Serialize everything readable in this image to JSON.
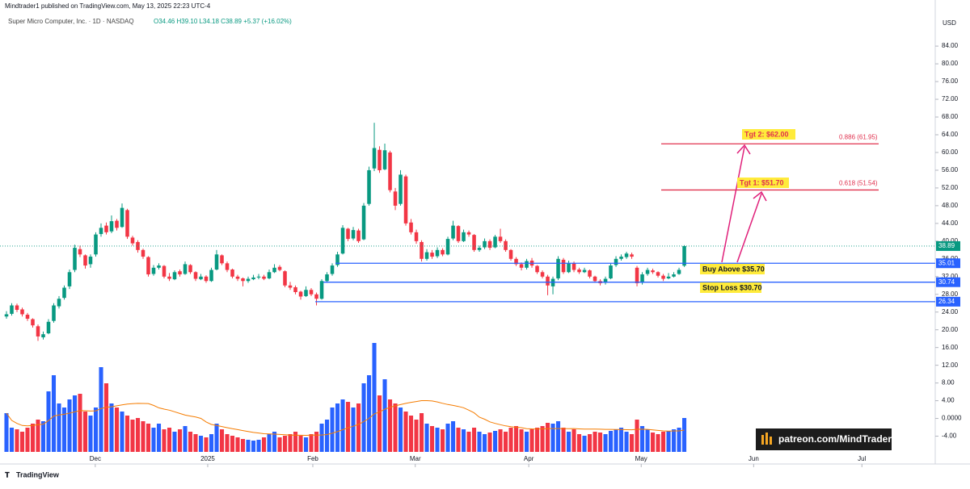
{
  "header": {
    "publisher": "Mindtrader1 published on TradingView.com, May 13, 2025 22:23 UTC-4",
    "symbol": "Super Micro Computer, Inc. · 1D · NASDAQ",
    "ohlc_text": "O34.46 H39.10 L34.18 C38.89 +5.37 (+16.02%)"
  },
  "chart_data": {
    "type": "candlestick",
    "currency": "USD",
    "up_color": "#089981",
    "down_color": "#f23645",
    "volume_up_color": "#2962ff",
    "volume_down_color": "#f23645",
    "volume_ma_color": "#f57c00",
    "ohlc": [
      [
        23,
        24.2,
        22.5,
        23.5
      ],
      [
        23.6,
        26,
        23.2,
        25.5
      ],
      [
        25.5,
        25.9,
        24,
        24.5
      ],
      [
        24.6,
        25,
        23,
        23.5
      ],
      [
        23.4,
        23.8,
        22,
        22.5
      ],
      [
        22.4,
        22.6,
        20.5,
        21
      ],
      [
        20.8,
        21.2,
        17.5,
        18.5
      ],
      [
        18.3,
        19.6,
        17.8,
        19
      ],
      [
        19.2,
        22.4,
        19,
        21.8
      ],
      [
        22,
        26,
        21.6,
        25.5
      ],
      [
        25.3,
        27.6,
        24.8,
        27
      ],
      [
        27.2,
        30,
        26.8,
        29.5
      ],
      [
        29.8,
        33.6,
        29.2,
        33
      ],
      [
        33.5,
        39.2,
        33,
        38.5
      ],
      [
        38.2,
        39,
        36.4,
        37
      ],
      [
        36.8,
        37,
        33.8,
        34.5
      ],
      [
        34.8,
        37,
        34,
        36.5
      ],
      [
        37,
        42,
        36.5,
        41.5
      ],
      [
        41.6,
        44,
        41,
        43
      ],
      [
        43.5,
        44.2,
        41.5,
        42
      ],
      [
        42.2,
        45.8,
        41.8,
        44.5
      ],
      [
        44.6,
        45,
        42.4,
        43
      ],
      [
        43.2,
        48.5,
        43,
        47.5
      ],
      [
        47,
        47.3,
        40.5,
        41
      ],
      [
        40.8,
        41.2,
        39,
        39.5
      ],
      [
        39.8,
        40.2,
        37.4,
        38
      ],
      [
        38,
        38.3,
        36,
        36.5
      ],
      [
        36.4,
        36.6,
        32,
        32.5
      ],
      [
        32.6,
        34.6,
        32.2,
        34
      ],
      [
        34,
        35,
        33.6,
        34.5
      ],
      [
        34.4,
        34.6,
        31.6,
        32
      ],
      [
        32,
        32.8,
        31,
        31.5
      ],
      [
        31.4,
        33.4,
        31.2,
        33
      ],
      [
        33.2,
        33.6,
        32,
        32.5
      ],
      [
        32.6,
        35.4,
        32.4,
        34.8
      ],
      [
        34.6,
        34.8,
        32.6,
        33
      ],
      [
        33,
        33.2,
        31,
        31.5
      ],
      [
        31.4,
        32.6,
        31.2,
        32
      ],
      [
        32,
        32.3,
        30.6,
        31
      ],
      [
        31,
        34,
        30.8,
        33.5
      ],
      [
        33.6,
        38,
        33.4,
        37
      ],
      [
        36.8,
        37,
        34.6,
        35
      ],
      [
        35,
        35.4,
        33,
        33.5
      ],
      [
        33.6,
        33.8,
        31.6,
        32
      ],
      [
        32,
        32.4,
        31,
        31.5
      ],
      [
        31.6,
        31.8,
        29.8,
        31
      ],
      [
        31,
        32,
        30.6,
        31.5
      ],
      [
        31.4,
        32.4,
        31.2,
        31.8
      ],
      [
        31.8,
        32.6,
        31.4,
        32
      ],
      [
        32,
        32.4,
        31.2,
        31.5
      ],
      [
        31.6,
        33.6,
        31.4,
        33
      ],
      [
        33,
        34.8,
        32.8,
        34
      ],
      [
        34.2,
        34.6,
        33.2,
        33.5
      ],
      [
        33.2,
        33.4,
        29.6,
        30
      ],
      [
        30,
        30.8,
        29,
        29.5
      ],
      [
        29.6,
        30,
        28,
        28.5
      ],
      [
        28.6,
        28.8,
        26.8,
        27.5
      ],
      [
        27.6,
        29.8,
        27.4,
        29
      ],
      [
        29,
        29.4,
        27.6,
        28
      ],
      [
        28,
        28.4,
        25.5,
        27
      ],
      [
        27,
        31.4,
        26.8,
        31
      ],
      [
        31,
        33,
        30.6,
        32.5
      ],
      [
        32.6,
        35,
        32.2,
        34.5
      ],
      [
        34.6,
        37.6,
        34.2,
        37
      ],
      [
        37.2,
        43.6,
        37,
        43
      ],
      [
        42.8,
        43,
        40,
        40.5
      ],
      [
        40.6,
        43.2,
        40.2,
        42.5
      ],
      [
        42.4,
        42.8,
        39.6,
        40
      ],
      [
        40.4,
        48.6,
        40.2,
        48
      ],
      [
        48.4,
        56.8,
        48,
        56
      ],
      [
        56.4,
        66.7,
        55.8,
        61
      ],
      [
        60.6,
        61.4,
        55.4,
        56
      ],
      [
        56.2,
        62,
        56,
        60.5
      ],
      [
        60,
        60.4,
        51,
        51.5
      ],
      [
        51.2,
        52,
        47,
        48
      ],
      [
        48.4,
        56,
        48,
        55
      ],
      [
        54.6,
        55,
        43.5,
        44
      ],
      [
        44.2,
        45,
        41.5,
        42
      ],
      [
        42,
        42.6,
        39.4,
        40
      ],
      [
        39.8,
        40.2,
        35.4,
        36
      ],
      [
        36,
        38.2,
        35.6,
        37.5
      ],
      [
        37.4,
        38,
        36,
        36.5
      ],
      [
        36.6,
        38.6,
        36.2,
        38
      ],
      [
        38,
        38.4,
        36.6,
        37
      ],
      [
        37,
        41,
        36.8,
        40.5
      ],
      [
        40.6,
        44.6,
        40.2,
        43.5
      ],
      [
        43.4,
        43.6,
        39.6,
        40
      ],
      [
        40,
        42.6,
        39.8,
        42
      ],
      [
        42,
        42.4,
        41,
        41.5
      ],
      [
        41.4,
        41.6,
        37.6,
        38
      ],
      [
        38,
        39,
        37.6,
        38.5
      ],
      [
        38.6,
        40.6,
        38.2,
        40
      ],
      [
        40,
        40.4,
        38,
        38.5
      ],
      [
        38.6,
        41.4,
        38.4,
        41
      ],
      [
        41,
        42.8,
        39.6,
        40
      ],
      [
        40,
        40.4,
        37.6,
        38
      ],
      [
        38,
        38.2,
        35.6,
        36
      ],
      [
        36,
        36.4,
        34.4,
        34.8
      ],
      [
        34.8,
        35.2,
        33.4,
        34
      ],
      [
        34,
        36,
        33.6,
        35.5
      ],
      [
        35.6,
        36.2,
        34,
        34.5
      ],
      [
        34.4,
        34.6,
        32.6,
        33
      ],
      [
        33,
        33.4,
        31.6,
        32
      ],
      [
        32,
        32.4,
        27.8,
        30
      ],
      [
        29.8,
        32,
        28,
        31.5
      ],
      [
        31.6,
        36.6,
        31.2,
        36
      ],
      [
        35.8,
        36.2,
        32.6,
        33
      ],
      [
        33,
        35.6,
        32.8,
        35
      ],
      [
        35,
        35.4,
        33,
        33.5
      ],
      [
        33.6,
        34,
        32.6,
        33
      ],
      [
        33,
        34,
        32.8,
        33.5
      ],
      [
        33.4,
        33.6,
        31.6,
        32
      ],
      [
        32,
        32.2,
        30.6,
        31
      ],
      [
        31,
        31.4,
        30,
        30.5
      ],
      [
        30.6,
        32,
        30.2,
        31.5
      ],
      [
        31.6,
        35,
        31.4,
        34.5
      ],
      [
        34.6,
        36.6,
        34.2,
        36
      ],
      [
        36,
        37,
        35.6,
        36.5
      ],
      [
        36.4,
        37.6,
        36,
        37.2
      ],
      [
        37,
        37.4,
        36,
        36.5
      ],
      [
        34,
        34.4,
        29.8,
        30.5
      ],
      [
        30.6,
        33,
        30.2,
        32.5
      ],
      [
        32.6,
        34,
        32.2,
        33.5
      ],
      [
        33.4,
        33.8,
        32.6,
        33
      ],
      [
        33,
        33.2,
        31.8,
        32.2
      ],
      [
        32.2,
        32.6,
        31,
        31.5
      ],
      [
        31.6,
        32.8,
        31.4,
        32
      ],
      [
        32,
        33,
        31.8,
        32.5
      ],
      [
        32.6,
        34,
        32.4,
        33.52
      ],
      [
        34.46,
        39.1,
        34.18,
        38.89
      ]
    ],
    "volume": [
      48,
      30,
      28,
      25,
      30,
      35,
      40,
      38,
      75,
      95,
      60,
      55,
      65,
      70,
      72,
      50,
      45,
      55,
      105,
      85,
      60,
      55,
      50,
      45,
      40,
      42,
      38,
      35,
      30,
      35,
      28,
      30,
      25,
      28,
      32,
      25,
      22,
      20,
      18,
      22,
      35,
      28,
      22,
      20,
      18,
      16,
      15,
      14,
      15,
      18,
      22,
      25,
      18,
      20,
      22,
      25,
      20,
      18,
      22,
      25,
      35,
      40,
      55,
      60,
      65,
      62,
      55,
      60,
      85,
      95,
      135,
      70,
      90,
      65,
      60,
      55,
      50,
      45,
      40,
      48,
      35,
      32,
      30,
      28,
      35,
      38,
      30,
      28,
      25,
      30,
      25,
      22,
      24,
      26,
      28,
      25,
      30,
      32,
      28,
      25,
      28,
      30,
      32,
      36,
      35,
      38,
      30,
      25,
      28,
      22,
      20,
      22,
      25,
      24,
      22,
      26,
      28,
      30,
      25,
      22,
      40,
      32,
      28,
      24,
      22,
      25,
      26,
      28,
      30,
      42
    ],
    "vlim": [
      0,
      160
    ],
    "xlim": [
      -1.23,
      176.45
    ],
    "xticks": [
      {
        "value": 16.9,
        "label": "Dec"
      },
      {
        "value": 38.3,
        "label": "2025"
      },
      {
        "value": 58.3,
        "label": "Feb"
      },
      {
        "value": 77.8,
        "label": "Mar"
      },
      {
        "value": 99.4,
        "label": "Apr"
      },
      {
        "value": 120.8,
        "label": "May"
      },
      {
        "value": 142.2,
        "label": "Jun"
      },
      {
        "value": 162.8,
        "label": "Jul"
      }
    ],
    "ylim": [
      -9.0,
      94.4
    ],
    "yticks": [
      {
        "value": 84,
        "label": "84.00"
      },
      {
        "value": 80,
        "label": "80.00"
      },
      {
        "value": 76,
        "label": "76.00"
      },
      {
        "value": 72,
        "label": "72.00"
      },
      {
        "value": 68,
        "label": "68.00"
      },
      {
        "value": 64,
        "label": "64.00"
      },
      {
        "value": 60,
        "label": "60.00"
      },
      {
        "value": 56,
        "label": "56.00"
      },
      {
        "value": 52,
        "label": "52.00"
      },
      {
        "value": 48,
        "label": "48.00"
      },
      {
        "value": 44,
        "label": "44.00"
      },
      {
        "value": 40,
        "label": "40.00"
      },
      {
        "value": 36,
        "label": "36.00"
      },
      {
        "value": 32,
        "label": "32.00"
      },
      {
        "value": 28,
        "label": "28.00"
      },
      {
        "value": 24,
        "label": "24.00"
      },
      {
        "value": 20,
        "label": "20.00"
      },
      {
        "value": 16,
        "label": "16.00"
      },
      {
        "value": 12,
        "label": "12.00"
      },
      {
        "value": 8,
        "label": "8.00"
      },
      {
        "value": 4,
        "label": "4.00"
      },
      {
        "value": 0,
        "label": "0.0000"
      },
      {
        "value": -4,
        "label": "-4.00"
      }
    ],
    "last_price": 38.89,
    "levels": [
      35.01,
      30.74,
      26.34
    ],
    "level_color": "#2962ff",
    "fib_levels": [
      {
        "value": 61.95,
        "label": "0.886 (61.95)"
      },
      {
        "value": 51.54,
        "label": "0.618 (51.54)"
      }
    ],
    "fib_color": "#e0314e",
    "annotations": [
      "Tgt 2: $62.00",
      "Tgt 1: $51.70",
      "Buy Above $35.70",
      "Stop Loss $30.70"
    ]
  },
  "watermark": "patreon.com/MindTrader",
  "footer": "TradingView"
}
